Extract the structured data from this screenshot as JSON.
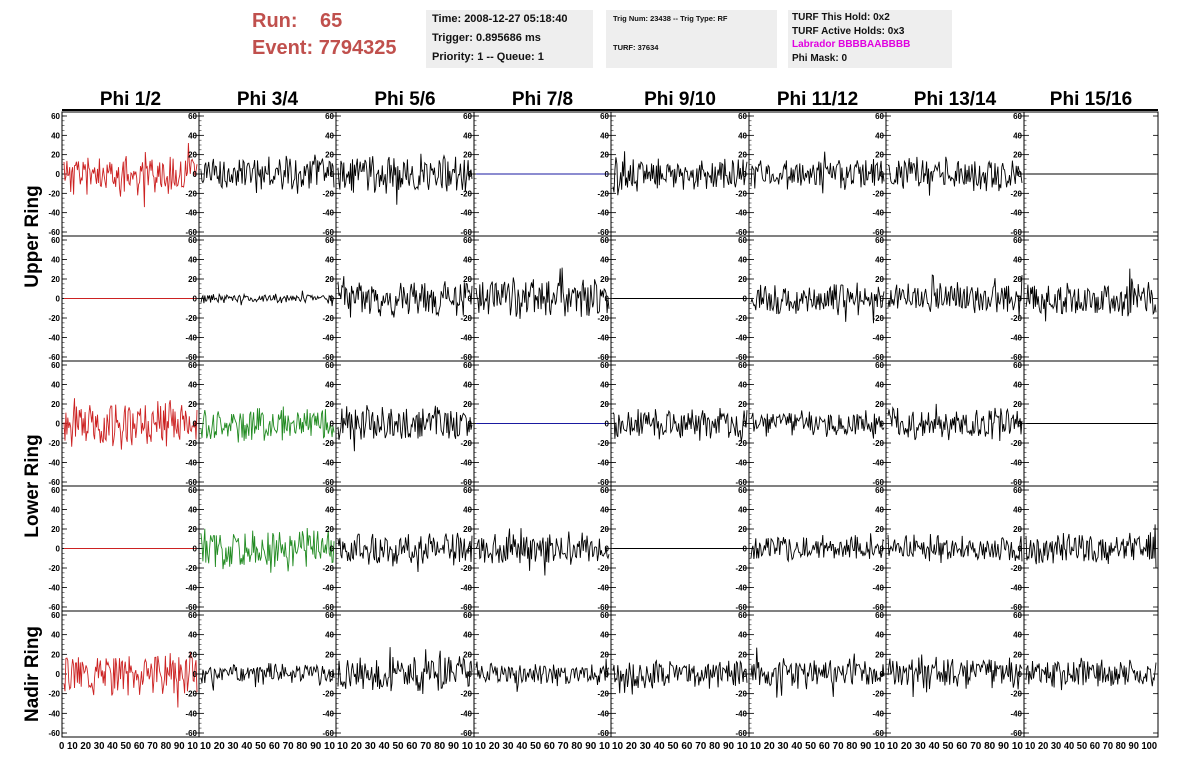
{
  "header": {
    "run_label": "Run:",
    "run_value": "65",
    "event_label": "Event:",
    "event_value": "7794325"
  },
  "info": {
    "time": "Time: 2008-12-27 05:18:40",
    "trigger": "Trigger: 0.895686 ms",
    "priority": "Priority: 1 -- Queue: 1",
    "trig_num": "Trig Num: 23438 -- Trig Type: RF",
    "turf": "TURF: 37634",
    "turf_hold": "TURF This Hold: 0x2",
    "turf_active": "TURF Active Holds: 0x3",
    "labrador": "Labrador BBBBAABBBB",
    "phi_mask": "Phi Mask: 0"
  },
  "colors": {
    "run_text": "#c0504d",
    "labrador_text": "#e000e0",
    "trace_black": "#000000",
    "trace_red": "#cc2222",
    "trace_green": "#228b22",
    "trace_blue": "#1a1aa0"
  },
  "chart_data": {
    "type": "line",
    "columns": [
      "Phi 1/2",
      "Phi 3/4",
      "Phi 5/6",
      "Phi 7/8",
      "Phi 9/10",
      "Phi 11/12",
      "Phi 13/14",
      "Phi 15/16"
    ],
    "row_groups": [
      {
        "label": "Upper Ring",
        "rows": [
          0,
          1
        ]
      },
      {
        "label": "Lower Ring",
        "rows": [
          2,
          3
        ]
      },
      {
        "label": "Nadir Ring",
        "rows": [
          4
        ]
      }
    ],
    "ylim": [
      -60,
      60
    ],
    "yticks": [
      -60,
      -40,
      -20,
      0,
      20,
      40,
      60
    ],
    "xlim": [
      0,
      100
    ],
    "xtick_labels": [
      "0",
      "10",
      "20",
      "30",
      "40",
      "50",
      "60",
      "70",
      "80",
      "90",
      "100"
    ],
    "x_axis_strings": [
      "0 10 20 30 40 50 60 70 80 90 10",
      "10 20 30 40 50 60 70 80 90 10",
      "10 20 30 40 50 60 70 80 90 10",
      "10 20 30 40 50 60 70 80 90 10",
      "10 20 30 40 50 60 70 80 90 10",
      "10 20 30 40 50 60 70 80 90 10",
      "10 20 30 40 50 60 70 80 90 10",
      "10 20 30 40 50 60 70 80 90 100"
    ],
    "panels": [
      [
        {
          "color": "red",
          "amp": 18,
          "seed": 11
        },
        {
          "color": "black",
          "amp": 16,
          "seed": 12
        },
        {
          "color": "black",
          "amp": 17,
          "seed": 13
        },
        {
          "color": "blue",
          "amp": 0,
          "seed": 14
        },
        {
          "color": "black",
          "amp": 15,
          "seed": 15
        },
        {
          "color": "black",
          "amp": 13,
          "seed": 16
        },
        {
          "color": "black",
          "amp": 15,
          "seed": 17
        },
        {
          "color": "black",
          "amp": 0,
          "seed": 18
        }
      ],
      [
        {
          "color": "red",
          "amp": 0,
          "seed": 21
        },
        {
          "color": "black",
          "amp": 4,
          "seed": 22
        },
        {
          "color": "black",
          "amp": 16,
          "seed": 23
        },
        {
          "color": "black",
          "amp": 17,
          "seed": 24
        },
        {
          "color": "black",
          "amp": 0,
          "seed": 25
        },
        {
          "color": "black",
          "amp": 14,
          "seed": 26
        },
        {
          "color": "black",
          "amp": 13,
          "seed": 27
        },
        {
          "color": "black",
          "amp": 15,
          "seed": 28
        }
      ],
      [
        {
          "color": "red",
          "amp": 18,
          "seed": 31
        },
        {
          "color": "green",
          "amp": 14,
          "seed": 32
        },
        {
          "color": "black",
          "amp": 15,
          "seed": 33
        },
        {
          "color": "blue",
          "amp": 0,
          "seed": 34
        },
        {
          "color": "black",
          "amp": 13,
          "seed": 35
        },
        {
          "color": "black",
          "amp": 11,
          "seed": 36
        },
        {
          "color": "black",
          "amp": 14,
          "seed": 37
        },
        {
          "color": "black",
          "amp": 0,
          "seed": 38
        }
      ],
      [
        {
          "color": "red",
          "amp": 0,
          "seed": 41
        },
        {
          "color": "green",
          "amp": 17,
          "seed": 42
        },
        {
          "color": "black",
          "amp": 13,
          "seed": 43
        },
        {
          "color": "black",
          "amp": 14,
          "seed": 44
        },
        {
          "color": "black",
          "amp": 0,
          "seed": 45
        },
        {
          "color": "black",
          "amp": 11,
          "seed": 46
        },
        {
          "color": "black",
          "amp": 11,
          "seed": 47
        },
        {
          "color": "black",
          "amp": 16,
          "seed": 48
        }
      ],
      [
        {
          "color": "red",
          "amp": 18,
          "seed": 51
        },
        {
          "color": "black",
          "amp": 9,
          "seed": 52
        },
        {
          "color": "black",
          "amp": 15,
          "seed": 53
        },
        {
          "color": "black",
          "amp": 9,
          "seed": 54
        },
        {
          "color": "black",
          "amp": 12,
          "seed": 55
        },
        {
          "color": "black",
          "amp": 13,
          "seed": 56
        },
        {
          "color": "black",
          "amp": 14,
          "seed": 57
        },
        {
          "color": "black",
          "amp": 12,
          "seed": 58
        }
      ]
    ]
  }
}
